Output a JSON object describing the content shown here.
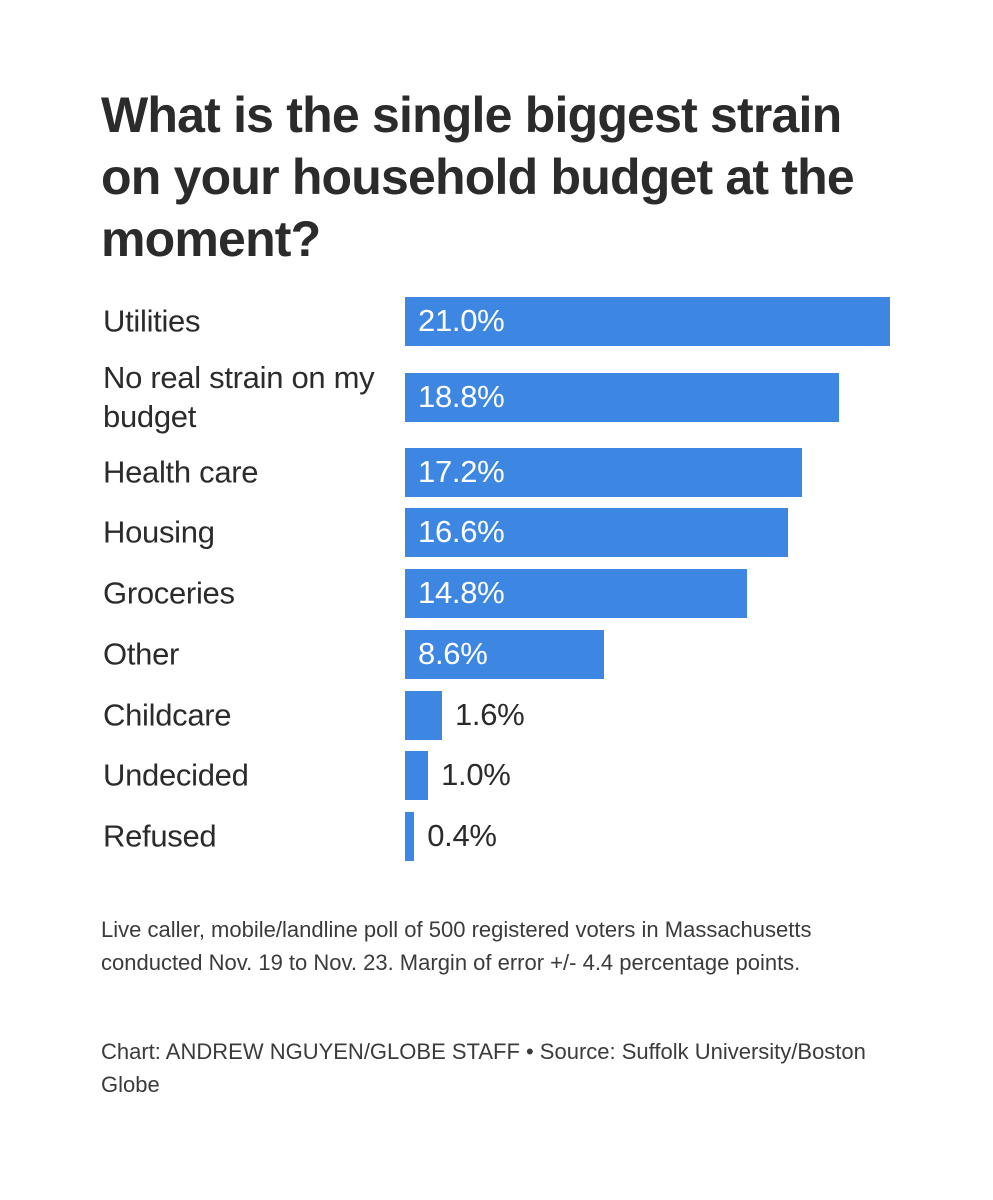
{
  "chart_data": {
    "type": "bar",
    "orientation": "horizontal",
    "title": "What is the single biggest strain on your household budget at the moment?",
    "categories": [
      "Utilities",
      "No real strain on my budget",
      "Health care",
      "Housing",
      "Groceries",
      "Other",
      "Childcare",
      "Undecided",
      "Refused"
    ],
    "values": [
      21.0,
      18.8,
      17.2,
      16.6,
      14.8,
      8.6,
      1.6,
      1.0,
      0.4
    ],
    "value_labels": [
      "21.0%",
      "18.8%",
      "17.2%",
      "16.6%",
      "14.8%",
      "8.6%",
      "1.6%",
      "1.0%",
      "0.4%"
    ],
    "xlim": [
      0,
      21.0
    ],
    "xlabel": "",
    "ylabel": "",
    "bar_color": "#3d87e3"
  },
  "footnote": "Live caller, mobile/landline poll of 500 registered voters in Massachusetts conducted Nov. 19 to Nov. 23. Margin of error +/- 4.4 percentage points.",
  "credit": "Chart: ANDREW NGUYEN/GLOBE STAFF • Source: Suffolk University/Boston Globe"
}
